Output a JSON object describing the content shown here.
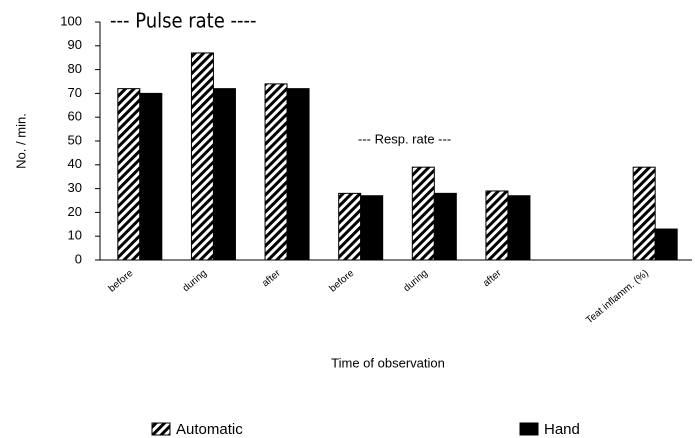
{
  "chart_data": {
    "type": "bar",
    "annotations": [
      "--- Pulse rate ----",
      "--- Resp. rate ---"
    ],
    "ylabel": "No. / min.",
    "xlabel": "Time of observation",
    "categories": [
      "before",
      "during",
      "after",
      "before",
      "during",
      "after",
      null,
      "Teat inflamm. (%)"
    ],
    "series": [
      {
        "name": "Automatic",
        "color": "#000000",
        "pattern": "hatch",
        "values": [
          72,
          87,
          74,
          28,
          39,
          29,
          null,
          39
        ]
      },
      {
        "name": "Hand",
        "color": "#000000",
        "pattern": "solid",
        "values": [
          70,
          72,
          72,
          27,
          28,
          27,
          null,
          13
        ]
      }
    ],
    "ylim": [
      0,
      100
    ],
    "yticks": [
      0,
      10,
      20,
      30,
      40,
      50,
      60,
      70,
      80,
      90,
      100
    ],
    "grid": false
  }
}
